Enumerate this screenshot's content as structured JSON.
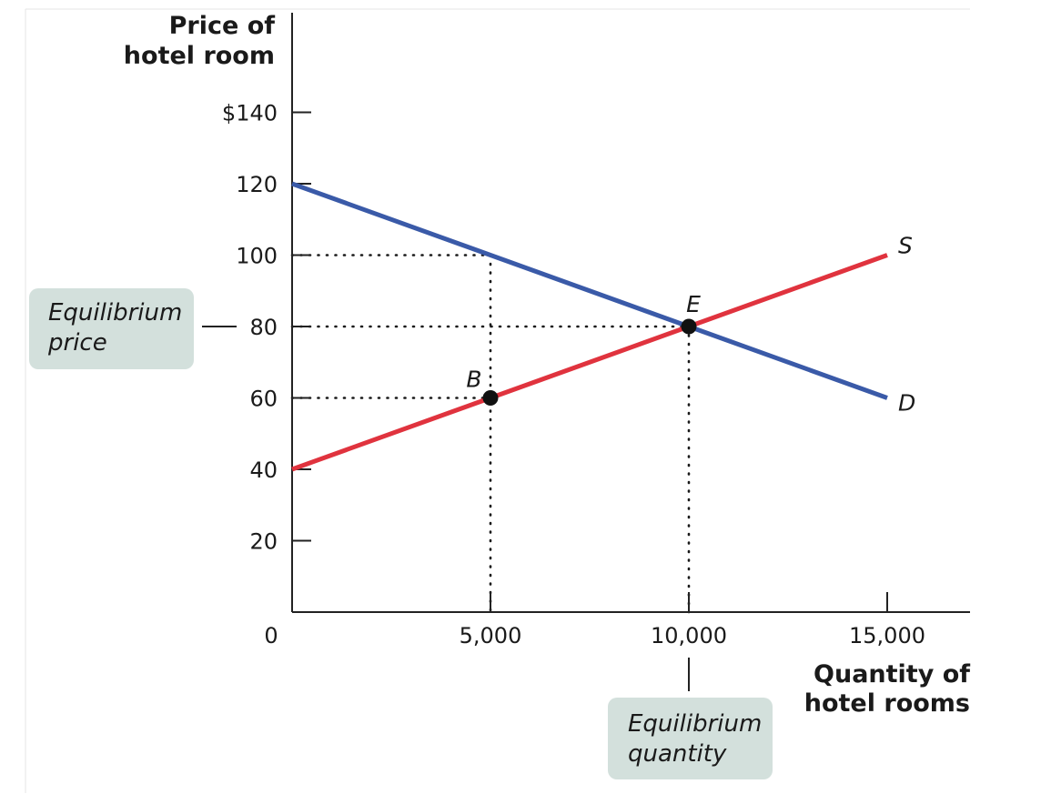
{
  "chart_data": {
    "type": "line",
    "ylabel": [
      "Price of",
      "hotel room"
    ],
    "xlabel": [
      "Quantity of",
      "hotel rooms"
    ],
    "origin_label": "0",
    "xlim": [
      0,
      15000
    ],
    "ylim": [
      0,
      140
    ],
    "x_ticks": [
      {
        "value": 5000,
        "label": "5,000"
      },
      {
        "value": 10000,
        "label": "10,000"
      },
      {
        "value": 15000,
        "label": "15,000"
      }
    ],
    "y_ticks": [
      {
        "value": 20,
        "label": "20"
      },
      {
        "value": 40,
        "label": "40"
      },
      {
        "value": 60,
        "label": "60"
      },
      {
        "value": 80,
        "label": "80"
      },
      {
        "value": 100,
        "label": "100"
      },
      {
        "value": 120,
        "label": "120"
      },
      {
        "value": 140,
        "label": "$140"
      }
    ],
    "series": [
      {
        "name": "D",
        "color": "#3a5aa8",
        "points": [
          [
            0,
            120
          ],
          [
            15000,
            60
          ]
        ]
      },
      {
        "name": "S",
        "color": "#e0333e",
        "points": [
          [
            0,
            40
          ],
          [
            15000,
            100
          ]
        ]
      }
    ],
    "points": [
      {
        "label": "E",
        "x": 10000,
        "y": 80
      },
      {
        "label": "B",
        "x": 5000,
        "y": 60
      }
    ],
    "guides": [
      {
        "from": [
          0,
          100
        ],
        "to": [
          5000,
          100
        ]
      },
      {
        "from": [
          5000,
          100
        ],
        "to": [
          5000,
          0
        ]
      },
      {
        "from": [
          0,
          80
        ],
        "to": [
          10000,
          80
        ]
      },
      {
        "from": [
          10000,
          80
        ],
        "to": [
          10000,
          0
        ]
      },
      {
        "from": [
          0,
          60
        ],
        "to": [
          5000,
          60
        ]
      }
    ],
    "callouts": {
      "price": {
        "lines": [
          "Equilibrium",
          "price"
        ],
        "value": 80
      },
      "quantity": {
        "lines": [
          "Equilibrium",
          "quantity"
        ],
        "value": 10000
      }
    },
    "grid": false,
    "colors": {
      "callout_bg": "#d3e0dc",
      "axis": "#222222"
    }
  }
}
